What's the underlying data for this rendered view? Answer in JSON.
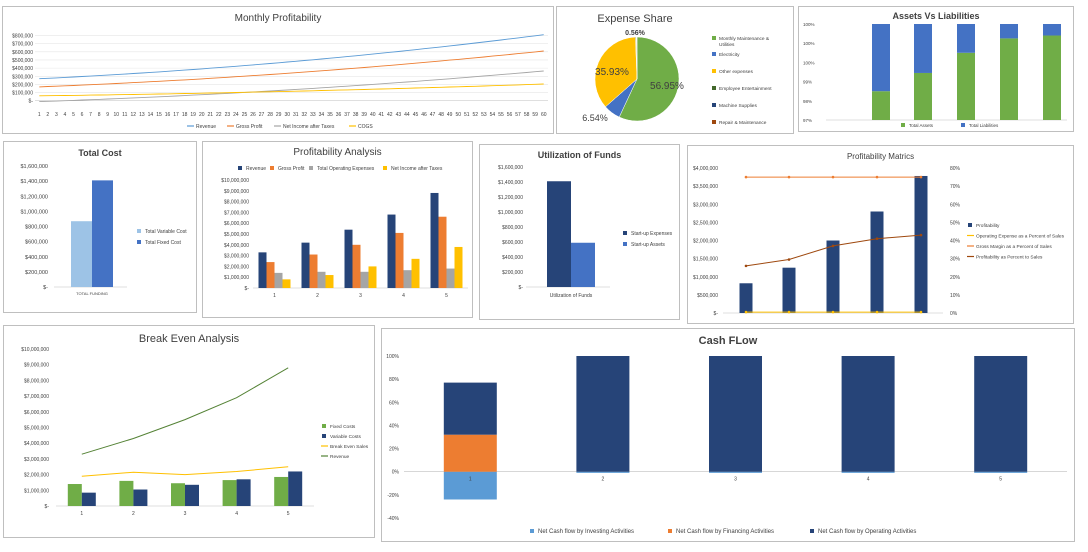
{
  "chart_data": [
    {
      "id": "monthly",
      "type": "line",
      "title": "Monthly Profitability",
      "x": [
        1,
        2,
        3,
        4,
        5,
        6,
        7,
        8,
        9,
        10,
        11,
        12,
        13,
        14,
        15,
        16,
        17,
        18,
        19,
        20,
        21,
        22,
        23,
        24,
        25,
        26,
        27,
        28,
        29,
        30,
        31,
        32,
        33,
        34,
        35,
        36,
        37,
        38,
        39,
        40,
        41,
        42,
        43,
        44,
        45,
        46,
        47,
        48,
        49,
        50,
        51,
        52,
        53,
        54,
        55,
        56,
        57,
        58,
        59,
        60
      ],
      "y_ticks": [
        "$-",
        "$100,000",
        "$200,000",
        "$300,000",
        "$400,000",
        "$500,000",
        "$600,000",
        "$700,000",
        "$800,000"
      ],
      "ylim": [
        -40000,
        880000
      ],
      "series": [
        {
          "name": "Revenue",
          "color": "#5b9bd5",
          "start": 270000,
          "end": 810000
        },
        {
          "name": "Gross Profit",
          "color": "#ed7d31",
          "start": 170000,
          "end": 610000
        },
        {
          "name": "Net Income after Taxes",
          "color": "#a5a5a5",
          "start": -10000,
          "end": 365000
        },
        {
          "name": "COGS",
          "color": "#ffc000",
          "start": 60000,
          "end": 205000
        }
      ],
      "legend_position": "bottom"
    },
    {
      "id": "expense",
      "type": "pie",
      "title": "Expense Share",
      "overlap_label": "0.56%",
      "slices": [
        {
          "name": "Monthly Maintenance & Utilities",
          "value": 56.95,
          "label": "56.95%",
          "color": "#70ad47"
        },
        {
          "name": "Electricity",
          "value": 6.54,
          "label": "6.54%",
          "color": "#4472c4"
        },
        {
          "name": "Other expenses",
          "value": 35.93,
          "label": "35.93%",
          "color": "#ffc000"
        },
        {
          "name": "Employee Entertainment",
          "value": 0.3,
          "label": "",
          "color": "#43682b"
        },
        {
          "name": "Machine Supplies",
          "value": 0.18,
          "label": "",
          "color": "#264478"
        },
        {
          "name": "Repair & Maintenance",
          "value": 0.1,
          "label": "",
          "color": "#9e480e"
        }
      ],
      "legend_position": "right"
    },
    {
      "id": "assets",
      "type": "bar",
      "stacked": true,
      "title": "Assets Vs Liabilities",
      "y_ticks": [
        "97%",
        "98%",
        "99%",
        "100%",
        "100%",
        "100%"
      ],
      "series": [
        {
          "name": "Total Assets",
          "color": "#70ad47",
          "values": [
            30,
            49,
            70,
            85,
            88
          ]
        },
        {
          "name": "Total Liabilities",
          "color": "#4472c4",
          "values": [
            70,
            51,
            30,
            15,
            12
          ]
        }
      ],
      "legend_position": "bottom"
    },
    {
      "id": "totalcost",
      "type": "bar",
      "title": "Total Cost",
      "categories": [
        "TOTAL FUNDING"
      ],
      "y_ticks": [
        "$-",
        "$200,000",
        "$400,000",
        "$600,000",
        "$800,000",
        "$1,000,000",
        "$1,200,000",
        "$1,400,000",
        "$1,600,000"
      ],
      "ylim": [
        0,
        1600000
      ],
      "series": [
        {
          "name": "Total Variable Cost",
          "color": "#9dc3e6",
          "values": [
            870000
          ]
        },
        {
          "name": "Total Fixed Cost",
          "color": "#4472c4",
          "values": [
            1410000
          ]
        }
      ],
      "legend_position": "right"
    },
    {
      "id": "profitability",
      "type": "bar",
      "title": "Profitability Analysis",
      "categories": [
        "1",
        "2",
        "3",
        "4",
        "5"
      ],
      "y_ticks": [
        "$-",
        "$1,000,000",
        "$2,000,000",
        "$3,000,000",
        "$4,000,000",
        "$5,000,000",
        "$6,000,000",
        "$7,000,000",
        "$8,000,000",
        "$9,000,000",
        "$10,000,000"
      ],
      "ylim": [
        0,
        10000000
      ],
      "series": [
        {
          "name": "Revenue",
          "color": "#264478",
          "values": [
            3300000,
            4200000,
            5400000,
            6800000,
            8800000
          ]
        },
        {
          "name": "Gross Profit",
          "color": "#ed7d31",
          "values": [
            2400000,
            3100000,
            4000000,
            5100000,
            6600000
          ]
        },
        {
          "name": "Total Operating Expenses",
          "color": "#a5a5a5",
          "values": [
            1400000,
            1500000,
            1500000,
            1650000,
            1800000
          ]
        },
        {
          "name": "Net Income after Taxes",
          "color": "#ffc000",
          "values": [
            800000,
            1200000,
            2000000,
            2700000,
            3800000
          ]
        }
      ],
      "legend_position": "top"
    },
    {
      "id": "funds",
      "type": "bar",
      "title": "Utilization of Funds",
      "categories": [
        "Utilization of Funds"
      ],
      "y_ticks": [
        "$-",
        "$200,000",
        "$400,000",
        "$600,000",
        "$800,000",
        "$1,000,000",
        "$1,200,000",
        "$1,400,000",
        "$1,600,000"
      ],
      "ylim": [
        0,
        1600000
      ],
      "series": [
        {
          "name": "Start-up Expenses",
          "color": "#264478",
          "values": [
            1410000
          ]
        },
        {
          "name": "Start-up Assets",
          "color": "#4472c4",
          "values": [
            590000
          ]
        }
      ],
      "legend_position": "right"
    },
    {
      "id": "matrics",
      "type": "bar",
      "title": "Profitability Matrics",
      "categories": [
        "1",
        "2",
        "3",
        "4",
        "5"
      ],
      "y_ticks": [
        "$-",
        "$500,000",
        "$1,000,000",
        "$1,500,000",
        "$2,000,000",
        "$2,500,000",
        "$3,000,000",
        "$3,500,000",
        "$4,000,000"
      ],
      "y2_ticks": [
        "0%",
        "10%",
        "20%",
        "30%",
        "40%",
        "50%",
        "60%",
        "70%",
        "80%"
      ],
      "ylim": [
        0,
        4000000
      ],
      "y2lim": [
        0,
        80
      ],
      "series": [
        {
          "name": "Profitability",
          "kind": "bar",
          "color": "#264478",
          "values": [
            820000,
            1250000,
            2000000,
            2800000,
            3780000
          ]
        },
        {
          "name": "Operating Expense as a Percent of Sales",
          "kind": "line",
          "axis": "y2",
          "color": "#ffc000",
          "values": [
            0.5,
            0.5,
            0.5,
            0.5,
            0.5
          ]
        },
        {
          "name": "Gross Margin as a Percent of Sales",
          "kind": "line",
          "axis": "y2",
          "color": "#ed7d31",
          "values": [
            75,
            75,
            75,
            75,
            75
          ]
        },
        {
          "name": "Profitability as Percent to Sales",
          "kind": "line",
          "axis": "y2",
          "color": "#9e480e",
          "values": [
            26,
            29.5,
            37,
            41,
            43
          ]
        }
      ],
      "legend_position": "right"
    },
    {
      "id": "breakeven",
      "type": "bar",
      "title": "Break Even Analysis",
      "categories": [
        "1",
        "2",
        "3",
        "4",
        "5"
      ],
      "y_ticks": [
        "$-",
        "$1,000,000",
        "$2,000,000",
        "$3,000,000",
        "$4,000,000",
        "$5,000,000",
        "$6,000,000",
        "$7,000,000",
        "$8,000,000",
        "$9,000,000",
        "$10,000,000"
      ],
      "ylim": [
        0,
        10000000
      ],
      "series": [
        {
          "name": "Fixed Costs",
          "kind": "bar",
          "color": "#70ad47",
          "values": [
            1400000,
            1600000,
            1450000,
            1650000,
            1850000
          ]
        },
        {
          "name": "Variable Costs",
          "kind": "bar",
          "color": "#264478",
          "values": [
            850000,
            1050000,
            1350000,
            1700000,
            2200000
          ]
        },
        {
          "name": "Break Even Sales",
          "kind": "line",
          "color": "#ffc000",
          "values": [
            1900000,
            2150000,
            2000000,
            2200000,
            2500000
          ]
        },
        {
          "name": "Revenue",
          "kind": "line",
          "color": "#548235",
          "values": [
            3300000,
            4300000,
            5500000,
            6900000,
            8800000
          ]
        }
      ],
      "legend_position": "right"
    },
    {
      "id": "cashflow",
      "type": "bar",
      "stacked": true,
      "title": "Cash FLow",
      "categories": [
        "1",
        "2",
        "3",
        "4",
        "5"
      ],
      "y_ticks": [
        "-40%",
        "-20%",
        "0%",
        "20%",
        "40%",
        "60%",
        "80%",
        "100%"
      ],
      "ylim": [
        -40,
        100
      ],
      "series": [
        {
          "name": "Net Cash flow by Investing Activities",
          "color": "#5b9bd5",
          "values": [
            -24,
            -1,
            -1,
            -1,
            -1
          ]
        },
        {
          "name": "Net Cash flow by Financing Activities",
          "color": "#ed7d31",
          "values": [
            32,
            0,
            0,
            0,
            0
          ]
        },
        {
          "name": "Net Cash flow by Operating Activities",
          "color": "#264478",
          "values": [
            45,
            100,
            100,
            100,
            100
          ]
        }
      ],
      "legend_position": "bottom"
    }
  ]
}
